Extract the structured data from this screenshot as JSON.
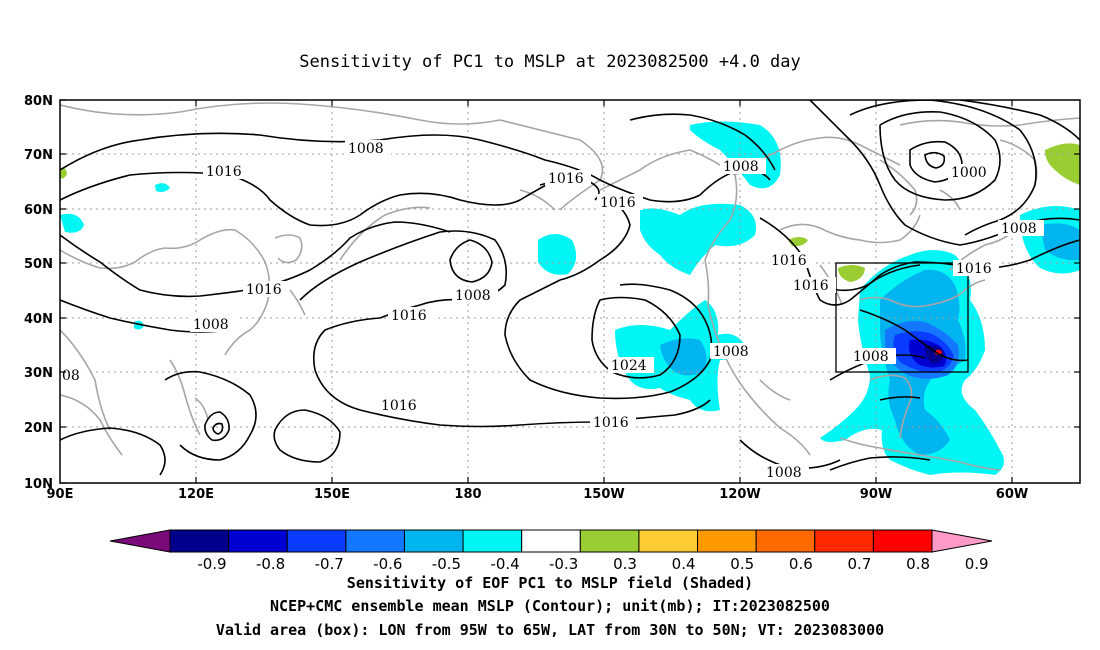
{
  "title": "Sensitivity of PC1 to MSLP at 2023082500 +4.0 day",
  "lat_ticks": [
    "80N",
    "70N",
    "60N",
    "50N",
    "40N",
    "30N",
    "20N",
    "10N"
  ],
  "lon_ticks": [
    "90E",
    "120E",
    "150E",
    "180",
    "150W",
    "120W",
    "90W",
    "60W"
  ],
  "contour_labels": [
    "1008",
    "1016",
    "1016",
    "1016",
    "1008",
    "1016",
    "1000",
    "1008",
    "1016",
    "1016",
    "1016",
    "1016",
    "1008",
    "1008",
    "1024",
    "1008",
    "1016",
    "1016",
    "1008",
    "1008",
    "08"
  ],
  "colorbar": {
    "labels": [
      "-0.9",
      "-0.8",
      "-0.7",
      "-0.6",
      "-0.5",
      "-0.4",
      "-0.3",
      "0.3",
      "0.4",
      "0.5",
      "0.6",
      "0.7",
      "0.8",
      "0.9"
    ],
    "colors": [
      "#7a0a7a",
      "#00008c",
      "#0000d2",
      "#0a3cff",
      "#1478ff",
      "#00b4f0",
      "#00f5f5",
      "#ffffff",
      "#9acd32",
      "#ffcc33",
      "#ff9900",
      "#ff6a00",
      "#ff2a00",
      "#ff0000",
      "#ff9ac8"
    ]
  },
  "shading_colors": {
    "cyan": "#00f5f5",
    "light_blue": "#00b4f0",
    "mid_blue": "#1478ff",
    "blue": "#0a3cff",
    "dark_blue": "#0000d2",
    "navy": "#00008c",
    "green": "#9acd32",
    "red": "#ff0000"
  },
  "valid_box": {
    "lon_min": -95,
    "lon_max": -65,
    "lat_min": 30,
    "lat_max": 50
  },
  "caption": [
    "Sensitivity of EOF PC1 to MSLP field (Shaded)",
    "NCEP+CMC ensemble mean MSLP (Contour); unit(mb); IT:2023082500",
    "Valid area (box): LON from 95W to 65W, LAT from 30N to 50N; VT: 2023083000"
  ]
}
